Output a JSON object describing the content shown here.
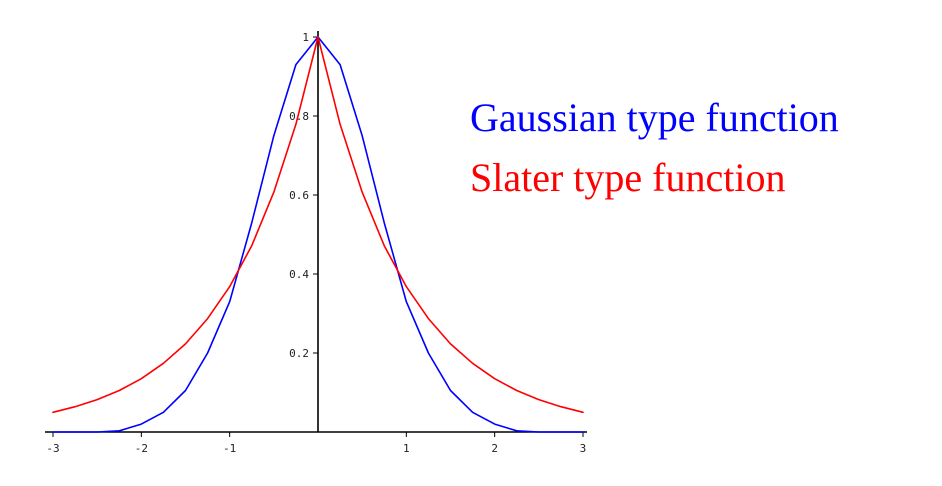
{
  "chart_data": {
    "type": "line",
    "title": "",
    "xlabel": "",
    "ylabel": "",
    "xlim": [
      -3,
      3
    ],
    "ylim": [
      0,
      1
    ],
    "grid": false,
    "legend_position": "right",
    "x_ticks": [
      {
        "value": -3,
        "label": "-3"
      },
      {
        "value": -2,
        "label": "-2"
      },
      {
        "value": -1,
        "label": "-1"
      },
      {
        "value": 1,
        "label": "1"
      },
      {
        "value": 2,
        "label": "2"
      },
      {
        "value": 3,
        "label": "3"
      }
    ],
    "y_ticks": [
      {
        "value": 0.2,
        "label": "0.2"
      },
      {
        "value": 0.4,
        "label": "0.4"
      },
      {
        "value": 0.6,
        "label": "0.6"
      },
      {
        "value": 0.8,
        "label": "0.8"
      },
      {
        "value": 1,
        "label": "1"
      }
    ],
    "series": [
      {
        "name": "Gaussian type function",
        "color": "#0000ff",
        "x": [
          -3,
          -2.75,
          -2.5,
          -2.25,
          -2,
          -1.75,
          -1.5,
          -1.25,
          -1,
          -0.75,
          -0.5,
          -0.25,
          0,
          0.25,
          0.5,
          0.75,
          1,
          1.25,
          1.5,
          1.75,
          2,
          2.25,
          2.5,
          2.75,
          3
        ],
        "y": [
          0.0,
          0.0,
          0.0,
          0.003,
          0.02,
          0.05,
          0.105,
          0.2,
          0.33,
          0.53,
          0.75,
          0.93,
          1.0,
          0.93,
          0.75,
          0.53,
          0.33,
          0.2,
          0.105,
          0.05,
          0.02,
          0.003,
          0.0,
          0.0,
          0.0
        ]
      },
      {
        "name": "Slater type function",
        "color": "#ff0000",
        "x": [
          -3,
          -2.75,
          -2.5,
          -2.25,
          -2,
          -1.75,
          -1.5,
          -1.25,
          -1,
          -0.75,
          -0.5,
          -0.25,
          0,
          0.25,
          0.5,
          0.75,
          1,
          1.25,
          1.5,
          1.75,
          2,
          2.25,
          2.5,
          2.75,
          3
        ],
        "y": [
          0.05,
          0.064,
          0.082,
          0.105,
          0.135,
          0.174,
          0.223,
          0.287,
          0.368,
          0.472,
          0.607,
          0.779,
          1.0,
          0.779,
          0.607,
          0.472,
          0.368,
          0.287,
          0.223,
          0.174,
          0.135,
          0.105,
          0.082,
          0.064,
          0.05
        ]
      }
    ]
  }
}
